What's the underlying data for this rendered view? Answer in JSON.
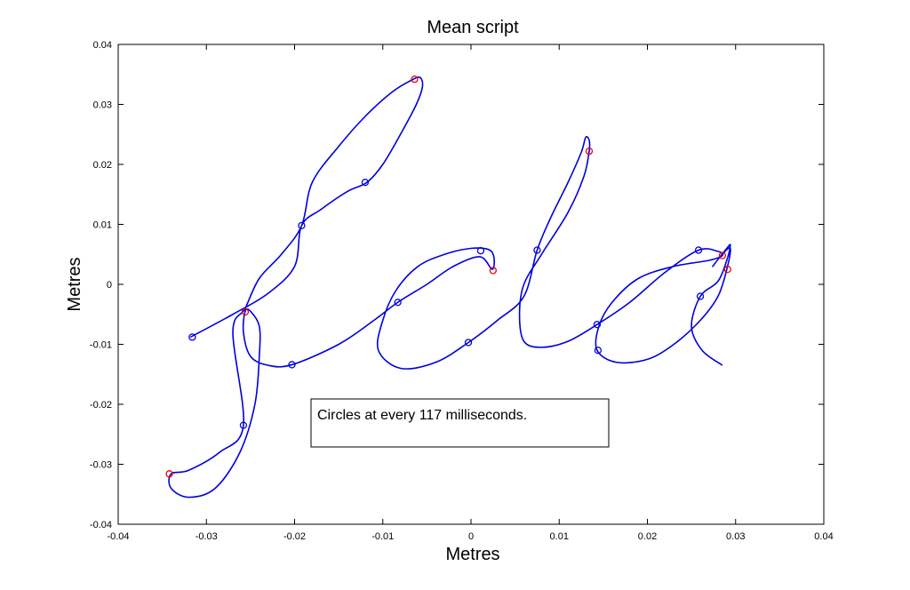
{
  "chart_data": {
    "type": "line",
    "title": "Mean script",
    "xlabel": "Metres",
    "ylabel": "Metres",
    "xlim": [
      -0.04,
      0.04
    ],
    "ylim": [
      -0.04,
      0.04
    ],
    "xticks": [
      -0.04,
      -0.03,
      -0.02,
      -0.01,
      0,
      0.01,
      0.02,
      0.03,
      0.04
    ],
    "xtick_labels": [
      "-0.04",
      "-0.03",
      "-0.02",
      "-0.01",
      "0",
      "0.01",
      "0.02",
      "0.03",
      "0.04"
    ],
    "yticks": [
      -0.04,
      -0.03,
      -0.02,
      -0.01,
      0,
      0.01,
      0.02,
      0.03,
      0.04
    ],
    "ytick_labels": [
      "-0.04",
      "-0.03",
      "-0.02",
      "-0.01",
      "0",
      "0.01",
      "0.02",
      "0.03",
      "0.04"
    ],
    "grid": false,
    "annotation": "Circles at every 117 milliseconds.",
    "colors": {
      "trace": "#0000dd",
      "blue_marker": "#0000dd",
      "red_marker": "#ee0000",
      "axes": "#000000"
    },
    "series": [
      {
        "trace": [
          [
            -0.0318,
            -0.0088
          ],
          [
            -0.027,
            -0.005
          ],
          [
            -0.023,
            -0.0015
          ],
          [
            -0.02,
            0.003
          ],
          [
            -0.0192,
            0.0098
          ],
          [
            -0.017,
            0.0125
          ],
          [
            -0.014,
            0.0155
          ],
          [
            -0.0118,
            0.017
          ],
          [
            -0.01,
            0.02
          ],
          [
            -0.008,
            0.025
          ],
          [
            -0.0062,
            0.03
          ],
          [
            -0.0055,
            0.033
          ],
          [
            -0.0058,
            0.0345
          ],
          [
            -0.0068,
            0.034
          ],
          [
            -0.009,
            0.032
          ],
          [
            -0.012,
            0.028
          ],
          [
            -0.015,
            0.023
          ],
          [
            -0.018,
            0.017
          ],
          [
            -0.0192,
            0.0098
          ],
          [
            -0.0215,
            0.005
          ],
          [
            -0.024,
            0.001
          ],
          [
            -0.0256,
            -0.004
          ],
          [
            -0.027,
            -0.008
          ],
          [
            -0.0258,
            -0.0235
          ],
          [
            -0.0285,
            -0.028
          ],
          [
            -0.032,
            -0.031
          ],
          [
            -0.034,
            -0.0316
          ],
          [
            -0.034,
            -0.034
          ],
          [
            -0.032,
            -0.0355
          ],
          [
            -0.029,
            -0.034
          ],
          [
            -0.0262,
            -0.028
          ],
          [
            -0.0245,
            -0.02
          ],
          [
            -0.024,
            -0.012
          ],
          [
            -0.024,
            -0.007
          ],
          [
            -0.025,
            -0.0045
          ],
          [
            -0.0256,
            -0.0045
          ],
          [
            -0.0258,
            -0.008
          ],
          [
            -0.025,
            -0.012
          ],
          [
            -0.023,
            -0.0135
          ],
          [
            -0.0203,
            -0.0134
          ],
          [
            -0.015,
            -0.01
          ],
          [
            -0.011,
            -0.006
          ],
          [
            -0.0083,
            -0.003
          ],
          [
            -0.005,
            0.0
          ],
          [
            -0.002,
            0.003
          ],
          [
            0.001,
            0.0046
          ],
          [
            0.0024,
            0.0025
          ],
          [
            0.0026,
            0.0045
          ],
          [
            0.002,
            0.0058
          ],
          [
            0.0,
            0.006
          ],
          [
            -0.003,
            0.005
          ],
          [
            -0.006,
            0.003
          ],
          [
            -0.0085,
            -0.001
          ],
          [
            -0.01,
            -0.006
          ],
          [
            -0.0105,
            -0.011
          ],
          [
            -0.008,
            -0.014
          ],
          [
            -0.004,
            -0.013
          ],
          [
            -0.0003,
            -0.0097
          ],
          [
            0.003,
            -0.006
          ],
          [
            0.006,
            -0.002
          ],
          [
            0.0075,
            0.0057
          ],
          [
            0.009,
            0.011
          ],
          [
            0.011,
            0.017
          ],
          [
            0.0125,
            0.022
          ],
          [
            0.013,
            0.0245
          ],
          [
            0.0134,
            0.024
          ],
          [
            0.0134,
            0.0222
          ],
          [
            0.0128,
            0.018
          ],
          [
            0.011,
            0.012
          ],
          [
            0.008,
            0.005
          ],
          [
            0.006,
            0.0
          ],
          [
            0.0055,
            -0.005
          ],
          [
            0.006,
            -0.0095
          ],
          [
            0.008,
            -0.0105
          ],
          [
            0.011,
            -0.0095
          ],
          [
            0.0143,
            -0.0067
          ],
          [
            0.018,
            -0.003
          ],
          [
            0.022,
            0.002
          ],
          [
            0.0258,
            0.0057
          ],
          [
            0.028,
            0.0055
          ],
          [
            0.0285,
            0.0048
          ],
          [
            0.027,
            0.004
          ],
          [
            0.023,
            0.003
          ],
          [
            0.019,
            0.001
          ],
          [
            0.016,
            -0.003
          ],
          [
            0.0145,
            -0.007
          ],
          [
            0.0143,
            -0.011
          ],
          [
            0.0165,
            -0.013
          ],
          [
            0.02,
            -0.0125
          ],
          [
            0.023,
            -0.01
          ],
          [
            0.026,
            -0.006
          ],
          [
            0.028,
            -0.002
          ],
          [
            0.029,
            0.0025
          ],
          [
            0.0294,
            0.006
          ],
          [
            0.0285,
            0.005
          ],
          [
            0.0274,
            0.003
          ],
          [
            0.029,
            0.006
          ],
          [
            0.0294,
            0.0065
          ],
          [
            0.029,
            0.004
          ],
          [
            0.028,
            0.0005
          ],
          [
            0.026,
            -0.002
          ],
          [
            0.025,
            -0.007
          ],
          [
            0.0262,
            -0.011
          ],
          [
            0.0285,
            -0.0135
          ]
        ]
      }
    ],
    "markers": {
      "blue": [
        [
          -0.0316,
          -0.0088
        ],
        [
          -0.0192,
          0.0098
        ],
        [
          -0.012,
          0.017
        ],
        [
          -0.0258,
          -0.0235
        ],
        [
          -0.0203,
          -0.0134
        ],
        [
          -0.0083,
          -0.003
        ],
        [
          -0.0003,
          -0.0097
        ],
        [
          0.0011,
          0.0056
        ],
        [
          0.0075,
          0.0057
        ],
        [
          0.0143,
          -0.0067
        ],
        [
          0.0144,
          -0.011
        ],
        [
          0.0258,
          0.0057
        ],
        [
          0.026,
          -0.002
        ]
      ],
      "red": [
        [
          -0.0064,
          0.0342
        ],
        [
          -0.0256,
          -0.0046
        ],
        [
          -0.0342,
          -0.0316
        ],
        [
          0.0025,
          0.0023
        ],
        [
          0.0134,
          0.0222
        ],
        [
          0.0285,
          0.0048
        ],
        [
          0.0291,
          0.0025
        ]
      ]
    }
  }
}
